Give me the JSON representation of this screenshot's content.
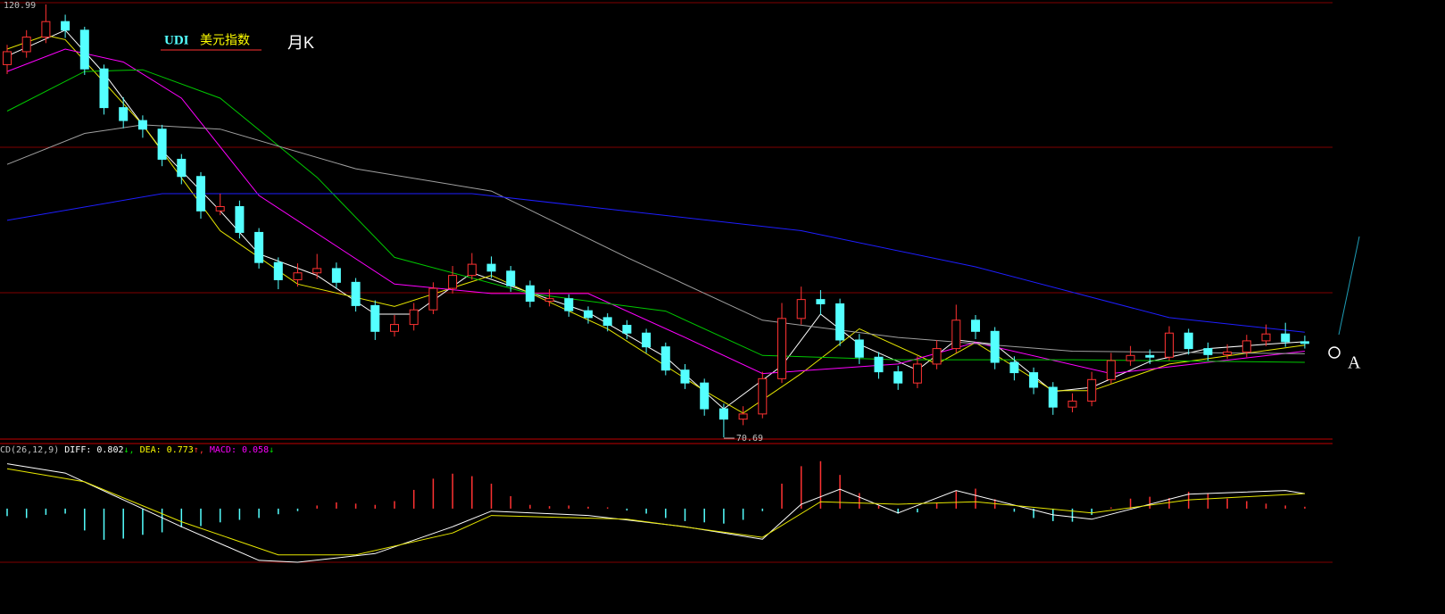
{
  "chart_data": [
    {
      "type": "candlestick",
      "title_parts": [
        "UDI",
        "美元指数"
      ],
      "period": "月K",
      "annotation": "A",
      "up_color": "#ff3232",
      "down_color": "#54ffff",
      "ylim": [
        70.69,
        120.99
      ],
      "open": [
        114.0,
        115.5,
        117.2,
        119.0,
        118.0,
        113.5,
        109.0,
        107.5,
        106.5,
        103.0,
        101.0,
        97.0,
        97.5,
        94.5,
        91.0,
        89.0,
        89.8,
        90.3,
        88.7,
        86.0,
        83.0,
        83.8,
        85.5,
        88.0,
        89.5,
        90.8,
        90.0,
        88.3,
        86.5,
        86.8,
        85.4,
        84.6,
        83.7,
        82.8,
        81.2,
        78.5,
        77.0,
        74.0,
        72.8,
        73.4,
        77.5,
        84.5,
        86.7,
        86.2,
        82.0,
        80.0,
        78.3,
        77.0,
        79.2,
        81.0,
        84.3,
        83.0,
        79.4,
        78.2,
        76.5,
        74.2,
        74.9,
        77.4,
        79.6,
        80.2,
        80.0,
        82.8,
        81.0,
        80.3,
        80.6,
        81.9,
        82.7,
        81.8
      ],
      "high": [
        116.3,
        118.0,
        120.99,
        119.8,
        118.4,
        114.0,
        110.2,
        108.1,
        107.0,
        103.6,
        101.5,
        99.0,
        98.2,
        95.0,
        91.6,
        90.9,
        92.0,
        91.0,
        89.2,
        86.6,
        84.9,
        86.3,
        88.7,
        90.6,
        92.1,
        91.7,
        90.6,
        88.9,
        87.9,
        87.3,
        85.9,
        85.1,
        84.3,
        83.3,
        81.7,
        79.2,
        77.5,
        74.6,
        74.3,
        78.3,
        86.3,
        88.2,
        87.8,
        86.8,
        82.7,
        80.6,
        79.0,
        80.1,
        82.0,
        86.1,
        84.9,
        83.5,
        80.1,
        78.8,
        77.1,
        75.8,
        78.3,
        80.5,
        81.3,
        80.9,
        83.6,
        83.3,
        81.7,
        81.5,
        82.6,
        83.8,
        84.0,
        82.5
      ],
      "low": [
        112.9,
        114.8,
        116.5,
        117.1,
        112.8,
        108.2,
        106.6,
        105.5,
        102.2,
        100.1,
        96.1,
        96.5,
        93.8,
        90.3,
        87.9,
        88.2,
        89.1,
        88.0,
        85.3,
        82.0,
        82.4,
        83.1,
        85.0,
        87.4,
        89.0,
        89.2,
        87.6,
        85.8,
        85.9,
        84.7,
        83.9,
        83.0,
        82.1,
        80.5,
        77.9,
        76.3,
        73.2,
        70.69,
        72.1,
        72.9,
        77.0,
        83.8,
        84.9,
        81.3,
        79.2,
        77.5,
        76.2,
        76.4,
        78.6,
        80.5,
        82.1,
        78.6,
        77.3,
        75.7,
        73.3,
        73.6,
        74.3,
        76.9,
        79.0,
        79.2,
        79.6,
        80.3,
        79.6,
        79.8,
        80.0,
        81.3,
        81.2,
        81.0
      ],
      "close": [
        115.5,
        117.2,
        119.0,
        118.0,
        113.5,
        109.0,
        107.5,
        106.5,
        103.0,
        101.0,
        97.0,
        97.5,
        94.5,
        91.0,
        89.0,
        89.8,
        90.3,
        88.7,
        86.0,
        83.0,
        83.8,
        85.5,
        88.0,
        89.5,
        90.8,
        90.0,
        88.3,
        86.5,
        86.8,
        85.4,
        84.6,
        83.7,
        82.8,
        81.2,
        78.5,
        77.0,
        74.0,
        72.8,
        73.4,
        77.5,
        84.5,
        86.7,
        86.2,
        82.0,
        80.0,
        78.3,
        77.0,
        79.2,
        81.0,
        84.3,
        83.0,
        79.4,
        78.2,
        76.5,
        74.2,
        74.9,
        77.4,
        79.6,
        80.2,
        80.0,
        82.8,
        81.0,
        80.3,
        80.6,
        81.9,
        82.7,
        81.8,
        81.6
      ],
      "series": [
        {
          "color": "#ffffff",
          "x": [
            0,
            3,
            5,
            8,
            11,
            13,
            16,
            19,
            21,
            24,
            27,
            30,
            34,
            37,
            40,
            42,
            44,
            47,
            49,
            51,
            54,
            56,
            59,
            62,
            65,
            67
          ],
          "values": [
            115,
            118,
            113,
            104,
            97,
            92,
            89.5,
            85,
            85,
            89.8,
            87.5,
            85.2,
            80,
            74,
            79,
            85,
            81.5,
            78.5,
            82,
            81.5,
            76,
            76.5,
            79.5,
            81,
            81.5,
            81.8
          ]
        },
        {
          "color": "#e6e600",
          "x": [
            0,
            2,
            3,
            7,
            11,
            15,
            20,
            25,
            31,
            36,
            38,
            41,
            44,
            48,
            50,
            54,
            56,
            60,
            67
          ],
          "values": [
            115.8,
            117.4,
            116.9,
            107.0,
            94.7,
            88.5,
            85.9,
            89.5,
            83.3,
            76.1,
            73.5,
            78.1,
            83.3,
            79.2,
            81.7,
            76.1,
            76.1,
            79.2,
            81.4
          ]
        },
        {
          "color": "#ff00ff",
          "x": [
            0,
            3,
            6,
            9,
            13,
            20,
            25,
            30,
            35,
            39,
            46,
            50,
            57,
            67
          ],
          "values": [
            113.2,
            115.8,
            114.3,
            110.1,
            98.8,
            88.5,
            87.4,
            87.4,
            82.3,
            78.1,
            79.2,
            81.7,
            78.1,
            80.7
          ]
        },
        {
          "color": "#00c800",
          "x": [
            0,
            4,
            7,
            11,
            16,
            20,
            27,
            34,
            39,
            46,
            55,
            67
          ],
          "values": [
            108.6,
            113.2,
            113.4,
            110.1,
            100.9,
            91.6,
            87.4,
            85.35,
            80.2,
            79.7,
            79.7,
            79.4
          ]
        },
        {
          "color": "#a0a0a0",
          "x": [
            0,
            4,
            7,
            11,
            18,
            25,
            32,
            39,
            46,
            55,
            67
          ],
          "values": [
            102.4,
            106.0,
            107.0,
            106.5,
            101.9,
            99.3,
            91.6,
            84.3,
            82.3,
            80.7,
            80.4
          ]
        },
        {
          "color": "#1e1eff",
          "x": [
            0,
            8,
            24,
            41,
            50,
            60,
            67
          ],
          "values": [
            95.9,
            99.0,
            99.0,
            94.7,
            90.5,
            84.6,
            82.9
          ]
        }
      ]
    },
    {
      "type": "macd",
      "params": "CD(26,12,9)",
      "diff_label": "DIFF: 0.802",
      "diff_arrow": "↓,",
      "dea_label": "DEA: 0.773",
      "dea_arrow": "↑,",
      "macd_label": "MACD: 0.058",
      "macd_arrow": "↓",
      "up_color": "#ff3232",
      "down_color": "#54ffff",
      "ylim": [
        -13.6,
        10
      ],
      "values": [
        -1.2,
        -1.5,
        -1.0,
        -0.8,
        -3.5,
        -5.0,
        -4.8,
        -4.2,
        -3.8,
        -3.0,
        -2.8,
        -2.2,
        -1.8,
        -1.5,
        -0.9,
        -0.4,
        0.5,
        1.0,
        0.8,
        0.6,
        1.2,
        3.0,
        4.8,
        5.6,
        5.2,
        4.0,
        2.0,
        0.6,
        0.4,
        0.5,
        0.3,
        0.2,
        -0.3,
        -0.8,
        -1.5,
        -2.0,
        -2.2,
        -2.4,
        -1.8,
        -0.4,
        4.0,
        6.8,
        7.6,
        5.4,
        2.5,
        0.5,
        -0.8,
        -0.6,
        1.0,
        2.8,
        3.2,
        1.5,
        -0.5,
        -1.5,
        -2.0,
        -2.1,
        -1.0,
        0.2,
        1.6,
        1.9,
        1.7,
        2.7,
        2.4,
        1.6,
        1.2,
        0.8,
        0.5,
        0.3
      ],
      "series": [
        {
          "color": "#ffffff",
          "x": [
            0,
            3,
            6,
            9,
            13,
            15,
            19,
            23,
            25,
            30,
            35,
            39,
            41,
            43,
            46,
            49,
            54,
            56,
            61,
            66,
            67
          ],
          "values": [
            7.2,
            5.7,
            1.4,
            -2.9,
            -8.3,
            -8.6,
            -7.2,
            -2.9,
            -0.4,
            -1.1,
            -2.9,
            -4.9,
            0.7,
            3.1,
            -0.7,
            2.9,
            -1.0,
            -1.7,
            2.3,
            2.9,
            2.4
          ]
        },
        {
          "color": "#e6e600",
          "x": [
            0,
            4,
            9,
            14,
            18,
            23,
            25,
            32,
            39,
            42,
            46,
            50,
            56,
            61,
            67
          ],
          "values": [
            6.4,
            4.3,
            -2.1,
            -7.4,
            -7.4,
            -3.9,
            -1.1,
            -1.7,
            -4.6,
            1.1,
            0.7,
            1.1,
            -0.7,
            1.4,
            2.4
          ]
        }
      ]
    }
  ]
}
